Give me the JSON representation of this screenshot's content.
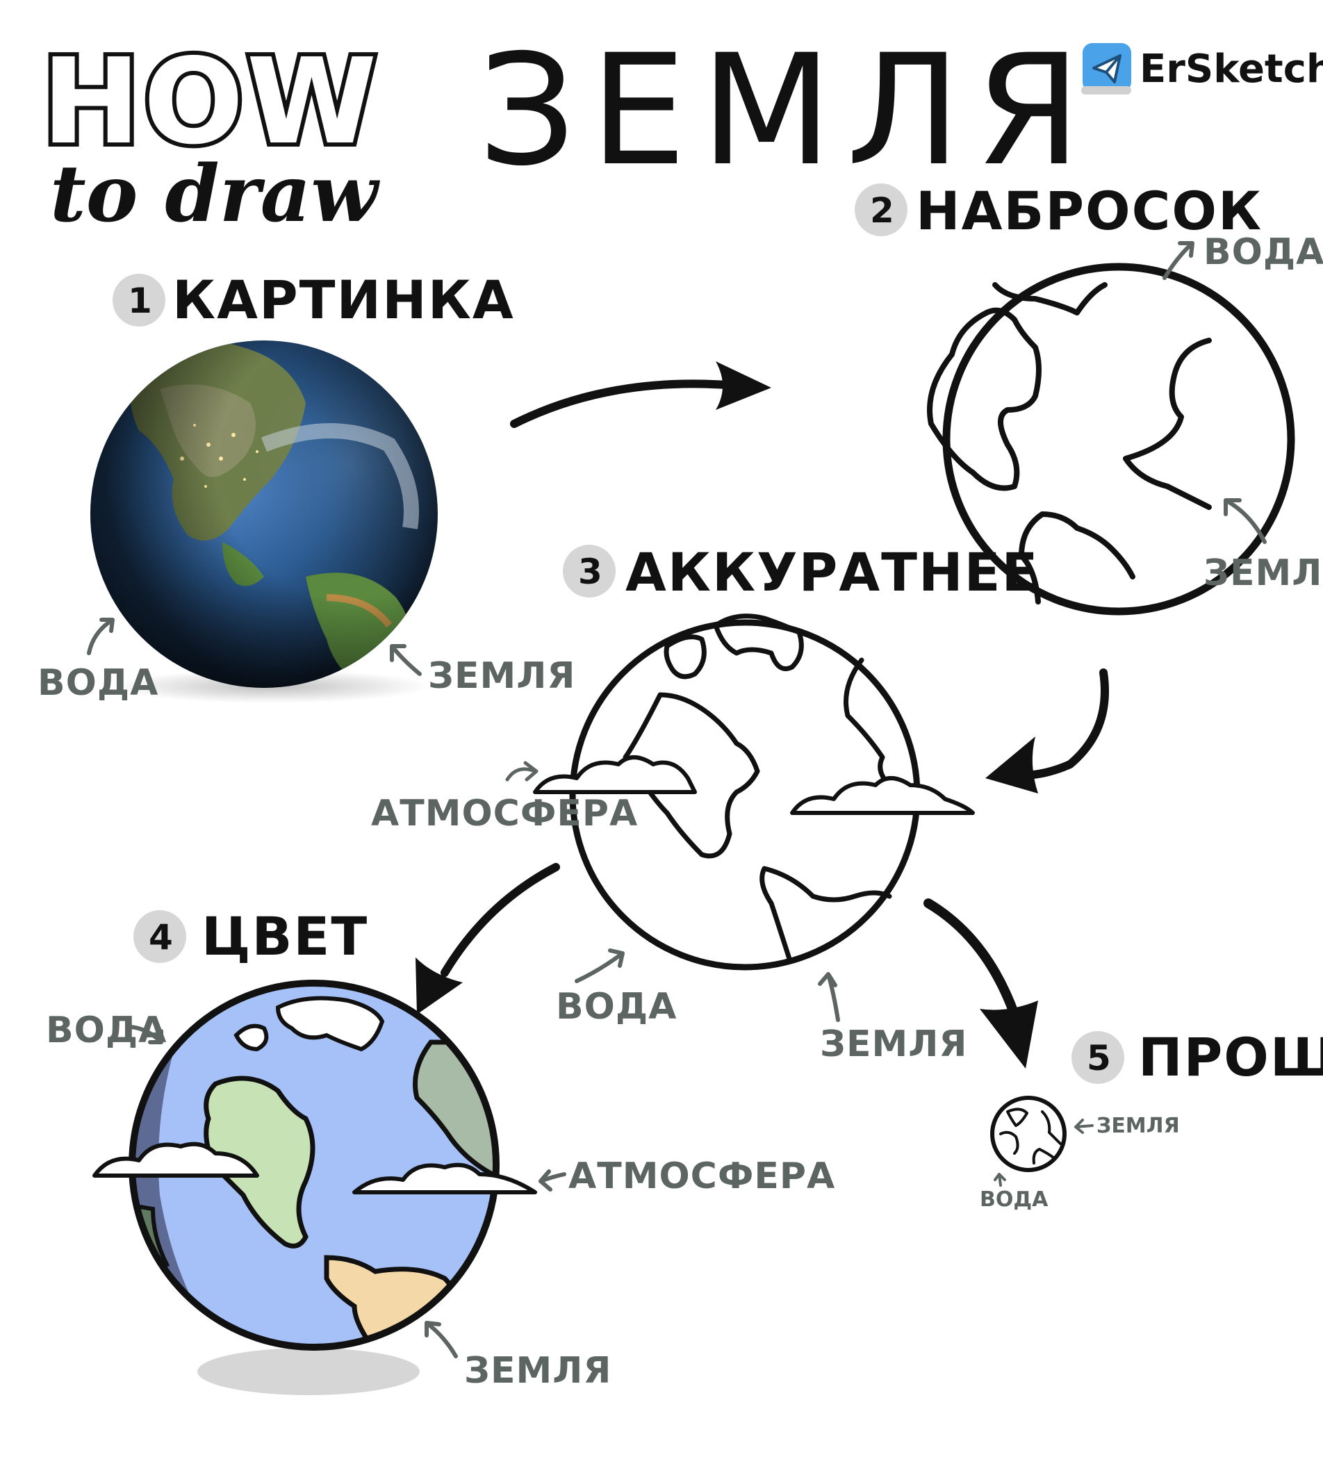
{
  "header": {
    "how": "HOW",
    "to_draw": "to draw",
    "title": "ЗЕМЛЯ",
    "brand": "ErSketch"
  },
  "steps": [
    {
      "number": "1",
      "label": "КАРТИНКА"
    },
    {
      "number": "2",
      "label": "НАБРОСОК"
    },
    {
      "number": "3",
      "label": "АККУРАТНЕЕ"
    },
    {
      "number": "4",
      "label": "ЦВЕТ"
    },
    {
      "number": "5",
      "label": "ПРОЩЕ"
    }
  ],
  "annotations": {
    "water": "ВОДА",
    "land": "ЗЕМЛЯ",
    "atmosphere": "АТМОСФЕРА",
    "water_alt": "ВОДА",
    "atmosphere_alt": "АТМОСФЕРА"
  },
  "colors": {
    "ink": "#111111",
    "label_gray": "#5d6563",
    "badge_gray": "#d6d6d6",
    "water_blue": "#a6c1f7",
    "water_shadow": "#5d6a93",
    "land_green": "#c7e3b5",
    "land_gray_green": "#a7bba6",
    "land_sand": "#f5d8a8",
    "brand_blue": "#4aa3e8"
  },
  "icons": {
    "brand": "telegram-icon"
  }
}
